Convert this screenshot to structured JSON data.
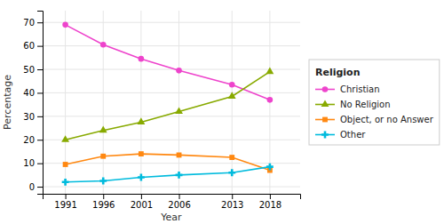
{
  "chart_data": {
    "type": "line",
    "title": "Religion",
    "x_label": "Year",
    "y_label": "Percentage",
    "x": [
      1991,
      1996,
      2001,
      2006,
      2013,
      2018
    ],
    "series": [
      {
        "name": "Christian",
        "color": "#EE44CC",
        "marker": "circle",
        "values": [
          69,
          60.5,
          54.5,
          49.5,
          43.5,
          37
        ]
      },
      {
        "name": "No Religion",
        "color": "#88AA00",
        "marker": "triangle",
        "values": [
          20,
          24,
          27.5,
          32,
          38.5,
          49
        ]
      },
      {
        "name": "Object, or no Answer",
        "color": "#FF8811",
        "marker": "square",
        "values": [
          9.5,
          13,
          14,
          13.5,
          12.5,
          7
        ]
      },
      {
        "name": "Other",
        "color": "#00BBDD",
        "marker": "plus",
        "values": [
          2,
          2.5,
          4,
          5,
          6,
          8.5
        ]
      }
    ],
    "xlim": [
      1988,
      2022
    ],
    "xticks": [
      1991,
      1996,
      2001,
      2006,
      2013,
      2018
    ],
    "ylim": [
      -3,
      75
    ],
    "yticks": [
      0,
      10,
      20,
      30,
      40,
      50,
      60,
      70
    ],
    "grid": true,
    "legend": "right"
  }
}
